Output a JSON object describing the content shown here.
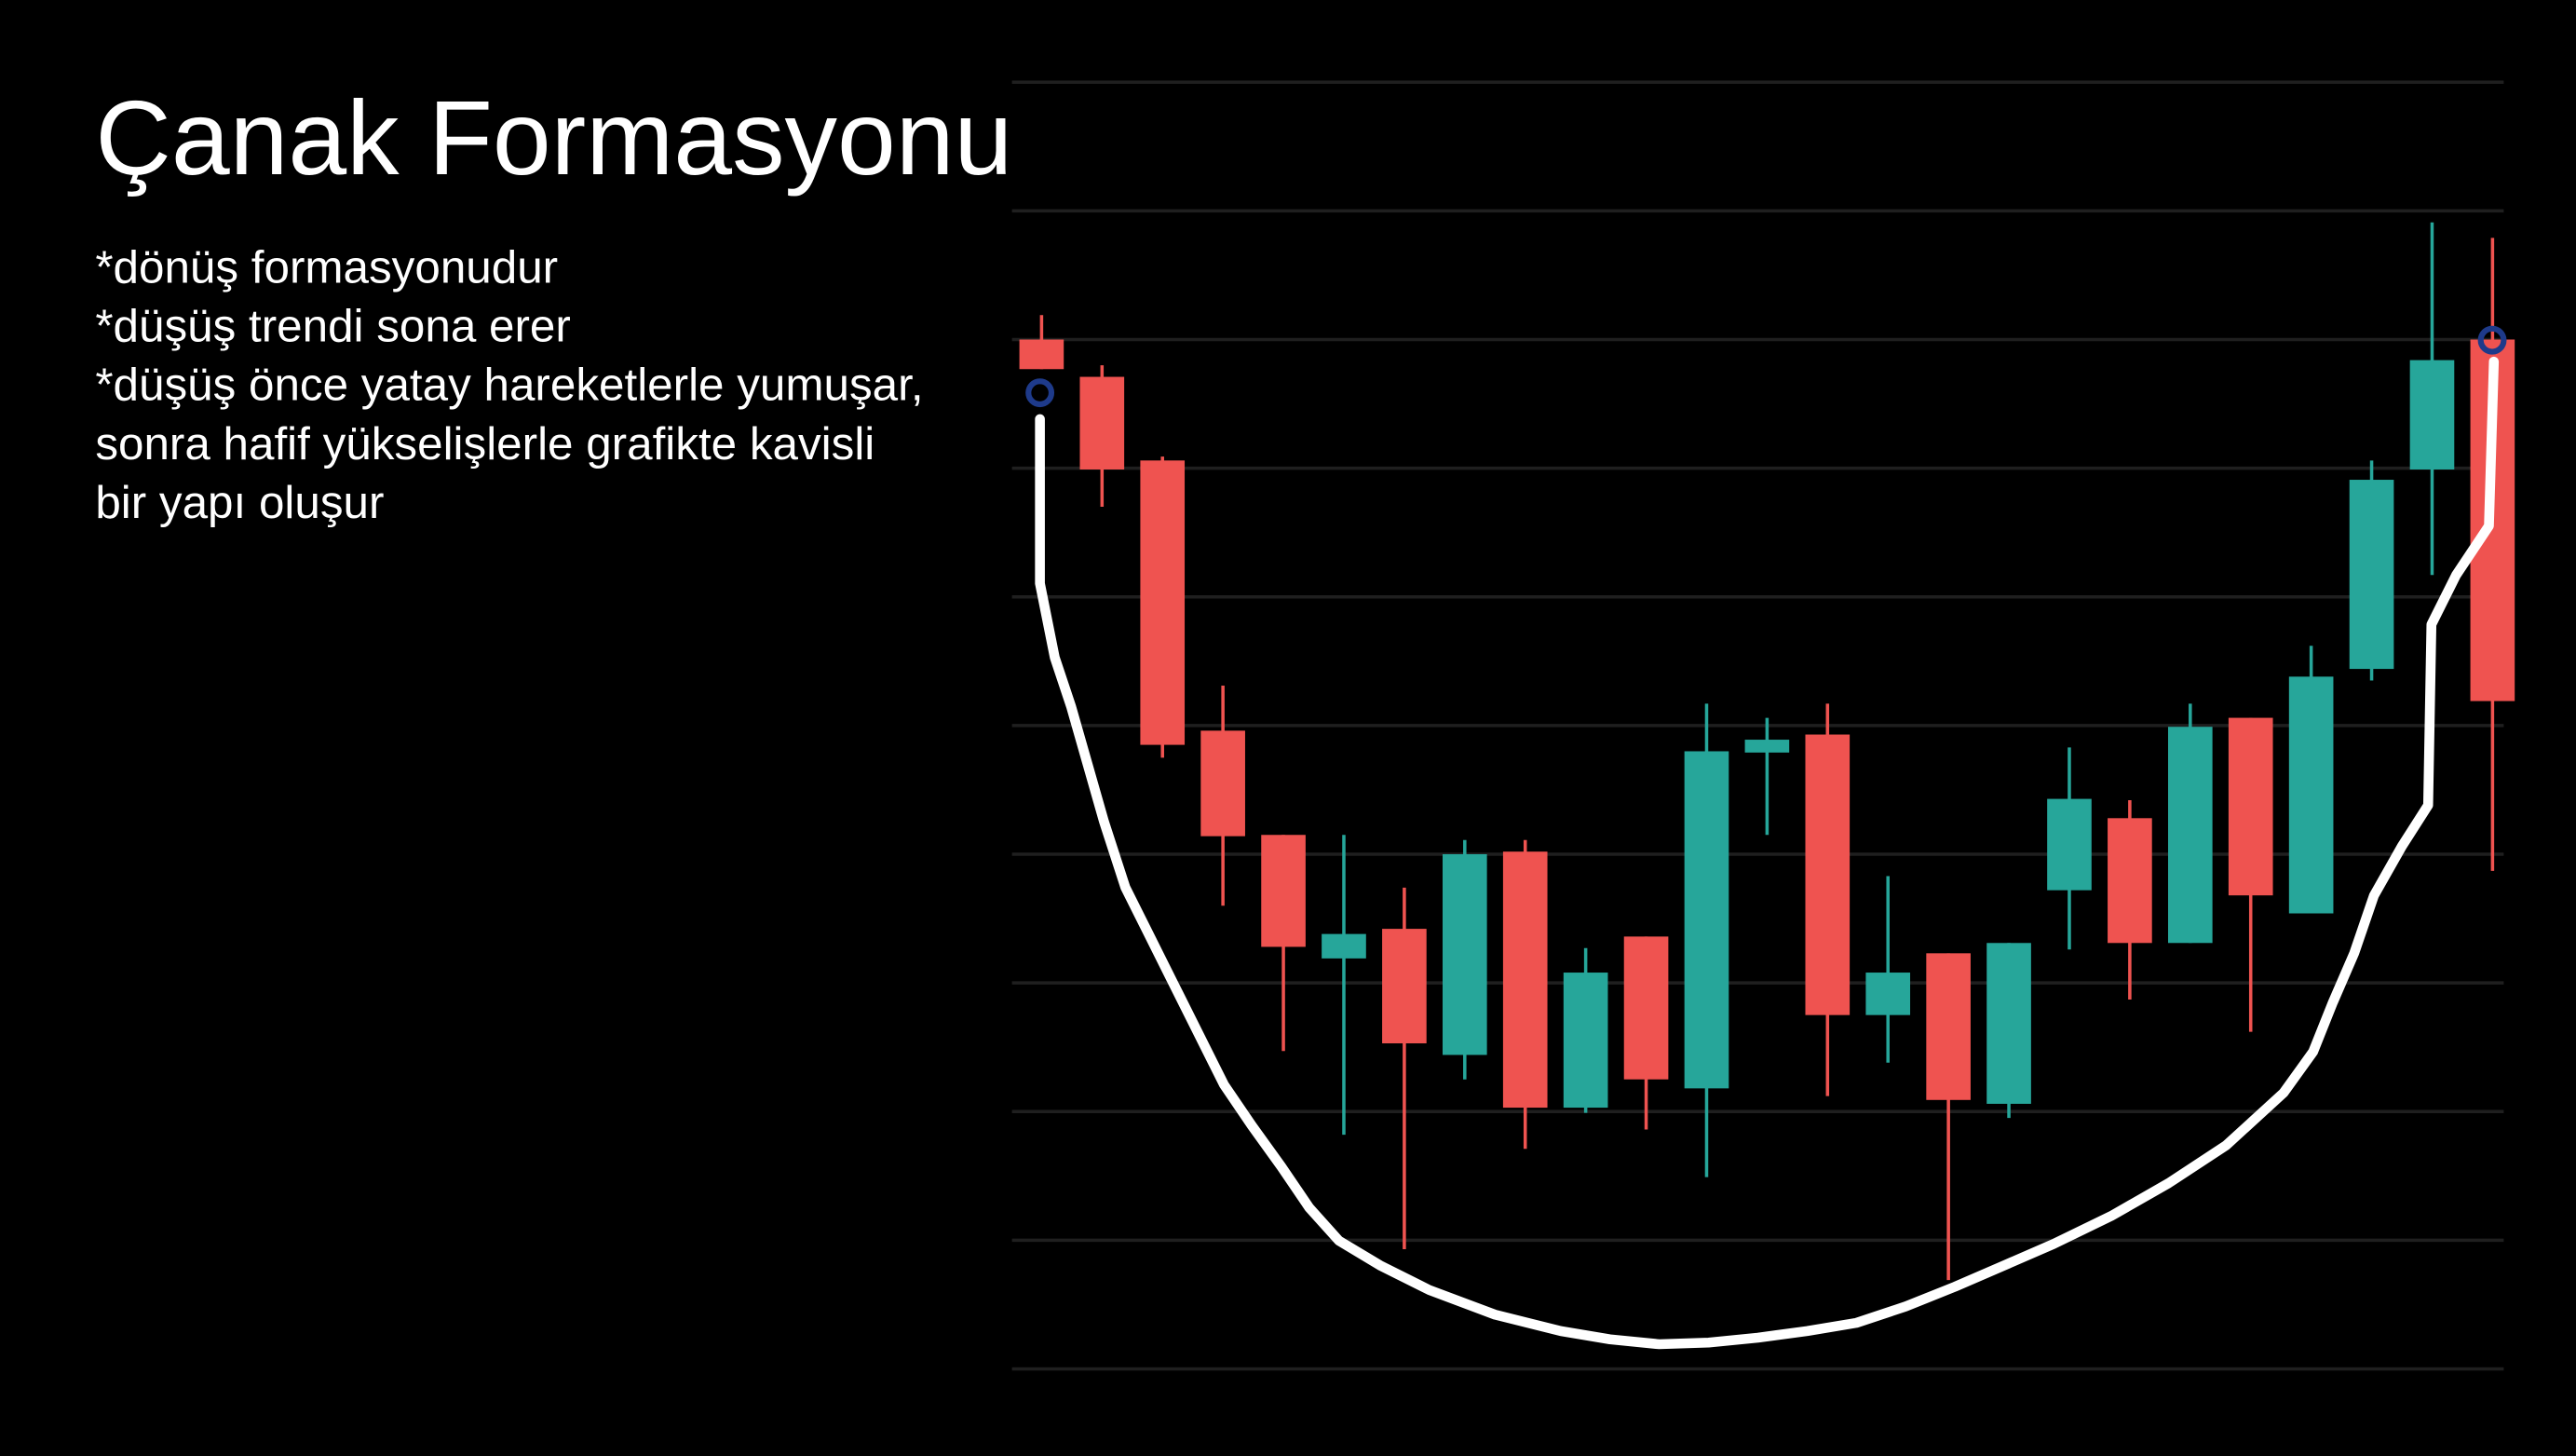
{
  "chart_data": {
    "type": "candlestick",
    "title": "Çanak Formasyonu",
    "annotations": [
      "*dönüş formasyonudur",
      "*düşüş trendi sona erer",
      "*düşüş önce yatay hareketlerle yumuşar,",
      "sonra hafif yükselişlerle grafikte kavisli",
      "bir yapı oluşur"
    ],
    "open": [
      8.0,
      7.71,
      7.06,
      4.96,
      4.15,
      3.19,
      3.42,
      2.44,
      4.02,
      2.03,
      3.36,
      2.18,
      4.79,
      4.93,
      2.75,
      3.23,
      2.06,
      3.72,
      4.28,
      3.31,
      5.06,
      3.54,
      5.44,
      6.99,
      8.0
    ],
    "high": [
      8.19,
      7.8,
      7.09,
      5.31,
      4.15,
      4.15,
      3.74,
      4.11,
      4.11,
      3.27,
      3.36,
      5.17,
      5.06,
      5.17,
      3.83,
      3.23,
      3.31,
      4.83,
      4.42,
      5.17,
      5.06,
      5.62,
      7.06,
      8.91,
      8.79
    ],
    "low": [
      7.77,
      6.7,
      4.75,
      3.6,
      2.47,
      1.82,
      0.93,
      2.25,
      1.71,
      1.99,
      1.86,
      1.49,
      4.15,
      2.12,
      2.38,
      0.69,
      1.95,
      3.26,
      2.87,
      3.31,
      2.62,
      3.54,
      5.35,
      6.17,
      3.87
    ],
    "close": [
      7.77,
      6.99,
      4.85,
      4.14,
      3.28,
      3.38,
      2.53,
      4.0,
      2.03,
      3.08,
      2.25,
      4.8,
      4.89,
      2.75,
      3.08,
      2.09,
      3.31,
      4.43,
      3.31,
      4.99,
      3.68,
      5.38,
      6.91,
      7.84,
      5.19
    ],
    "up_color": "#26a69a",
    "down_color": "#ef5350",
    "ylim": [
      0,
      10
    ],
    "yticks": [
      0,
      1,
      2,
      3,
      4,
      5,
      6,
      7,
      8,
      9,
      10
    ],
    "grid": true
  }
}
